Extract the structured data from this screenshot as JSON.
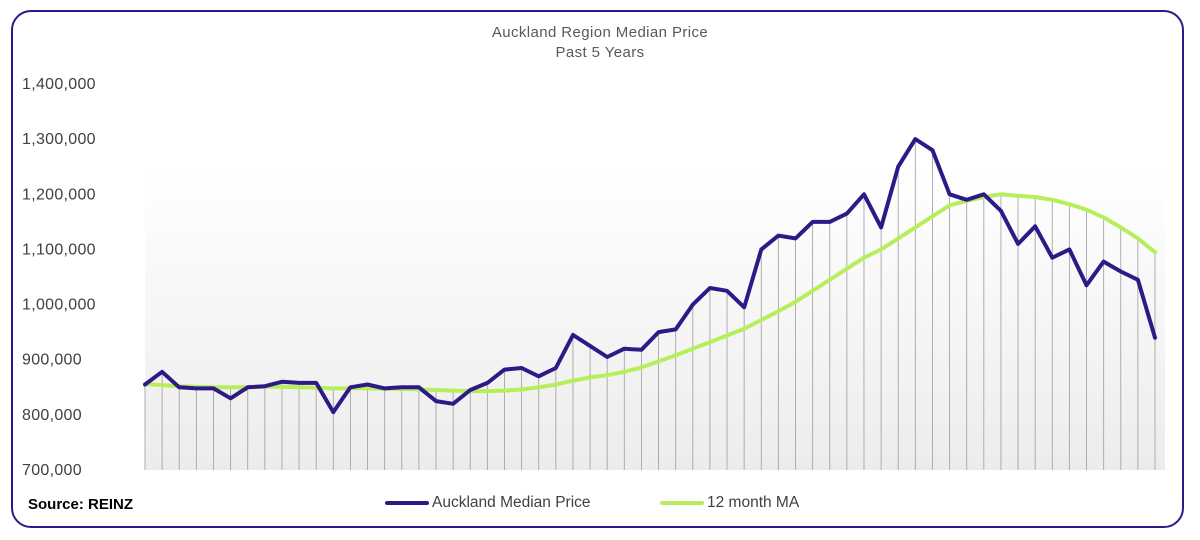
{
  "chart_data": {
    "type": "line",
    "title": "Auckland Region Median Price",
    "subtitle": "Past 5 Years",
    "source": "Source: REINZ",
    "ylim": [
      700000,
      1400000
    ],
    "yticks": [
      "1,400,000",
      "1,300,000",
      "1,200,000",
      "1,100,000",
      "1,000,000",
      "900,000",
      "800,000",
      "700,000"
    ],
    "ytick_values": [
      1400000,
      1300000,
      1200000,
      1100000,
      1000000,
      900000,
      800000,
      700000
    ],
    "x_count": 60,
    "grid": "vertical drop lines",
    "legend_position": "bottom",
    "series": [
      {
        "name": "Auckland Median Price",
        "color": "#2e1a87",
        "values": [
          855000,
          878000,
          850000,
          848000,
          848000,
          830000,
          850000,
          852000,
          860000,
          858000,
          858000,
          805000,
          850000,
          855000,
          848000,
          850000,
          850000,
          825000,
          820000,
          845000,
          858000,
          882000,
          885000,
          870000,
          885000,
          945000,
          925000,
          905000,
          920000,
          918000,
          950000,
          955000,
          1000000,
          1030000,
          1025000,
          995000,
          1100000,
          1125000,
          1120000,
          1150000,
          1150000,
          1165000,
          1200000,
          1140000,
          1250000,
          1300000,
          1280000,
          1200000,
          1190000,
          1200000,
          1170000,
          1110000,
          1142000,
          1085000,
          1100000,
          1035000,
          1078000,
          1060000,
          1045000,
          940000
        ]
      },
      {
        "name": "12 month MA",
        "color": "#b7ee5c",
        "values": [
          856000,
          854000,
          852000,
          851000,
          850000,
          850000,
          850000,
          851000,
          851000,
          850000,
          849000,
          848000,
          848000,
          848000,
          847000,
          847000,
          846000,
          845000,
          844000,
          843000,
          843000,
          844000,
          846000,
          850000,
          855000,
          862000,
          868000,
          872000,
          878000,
          886000,
          897000,
          908000,
          920000,
          932000,
          944000,
          956000,
          972000,
          988000,
          1005000,
          1025000,
          1045000,
          1065000,
          1085000,
          1100000,
          1120000,
          1140000,
          1160000,
          1180000,
          1188000,
          1195000,
          1200000,
          1197000,
          1195000,
          1190000,
          1182000,
          1172000,
          1158000,
          1140000,
          1120000,
          1095000
        ]
      }
    ]
  }
}
